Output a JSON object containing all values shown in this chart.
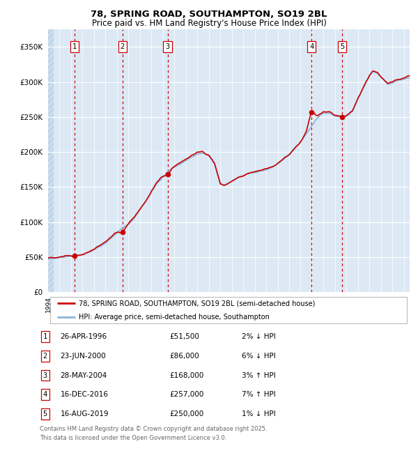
{
  "title_line1": "78, SPRING ROAD, SOUTHAMPTON, SO19 2BL",
  "title_line2": "Price paid vs. HM Land Registry's House Price Index (HPI)",
  "ylabel_ticks": [
    "£0",
    "£50K",
    "£100K",
    "£150K",
    "£200K",
    "£250K",
    "£300K",
    "£350K"
  ],
  "ytick_values": [
    0,
    50000,
    100000,
    150000,
    200000,
    250000,
    300000,
    350000
  ],
  "ylim": [
    0,
    375000
  ],
  "xlim_start": 1994.0,
  "xlim_end": 2025.5,
  "hpi_color": "#8ab4d8",
  "price_color": "#cc0000",
  "sale_marker_color": "#cc0000",
  "dashed_line_color": "#cc0000",
  "bg_color": "#dce9f5",
  "hatch_color": "#c0d5e8",
  "grid_color": "#ffffff",
  "sales": [
    {
      "num": 1,
      "date": "26-APR-1996",
      "price": 51500,
      "year": 1996.32,
      "hpi_pct": "2% ↓ HPI"
    },
    {
      "num": 2,
      "date": "23-JUN-2000",
      "price": 86000,
      "year": 2000.48,
      "hpi_pct": "6% ↓ HPI"
    },
    {
      "num": 3,
      "date": "28-MAY-2004",
      "price": 168000,
      "year": 2004.41,
      "hpi_pct": "3% ↑ HPI"
    },
    {
      "num": 4,
      "date": "16-DEC-2016",
      "price": 257000,
      "year": 2016.96,
      "hpi_pct": "7% ↑ HPI"
    },
    {
      "num": 5,
      "date": "16-AUG-2019",
      "price": 250000,
      "year": 2019.62,
      "hpi_pct": "1% ↓ HPI"
    }
  ],
  "legend_line1": "78, SPRING ROAD, SOUTHAMPTON, SO19 2BL (semi-detached house)",
  "legend_line2": "HPI: Average price, semi-detached house, Southampton",
  "footnote_line1": "Contains HM Land Registry data © Crown copyright and database right 2025.",
  "footnote_line2": "This data is licensed under the Open Government Licence v3.0."
}
